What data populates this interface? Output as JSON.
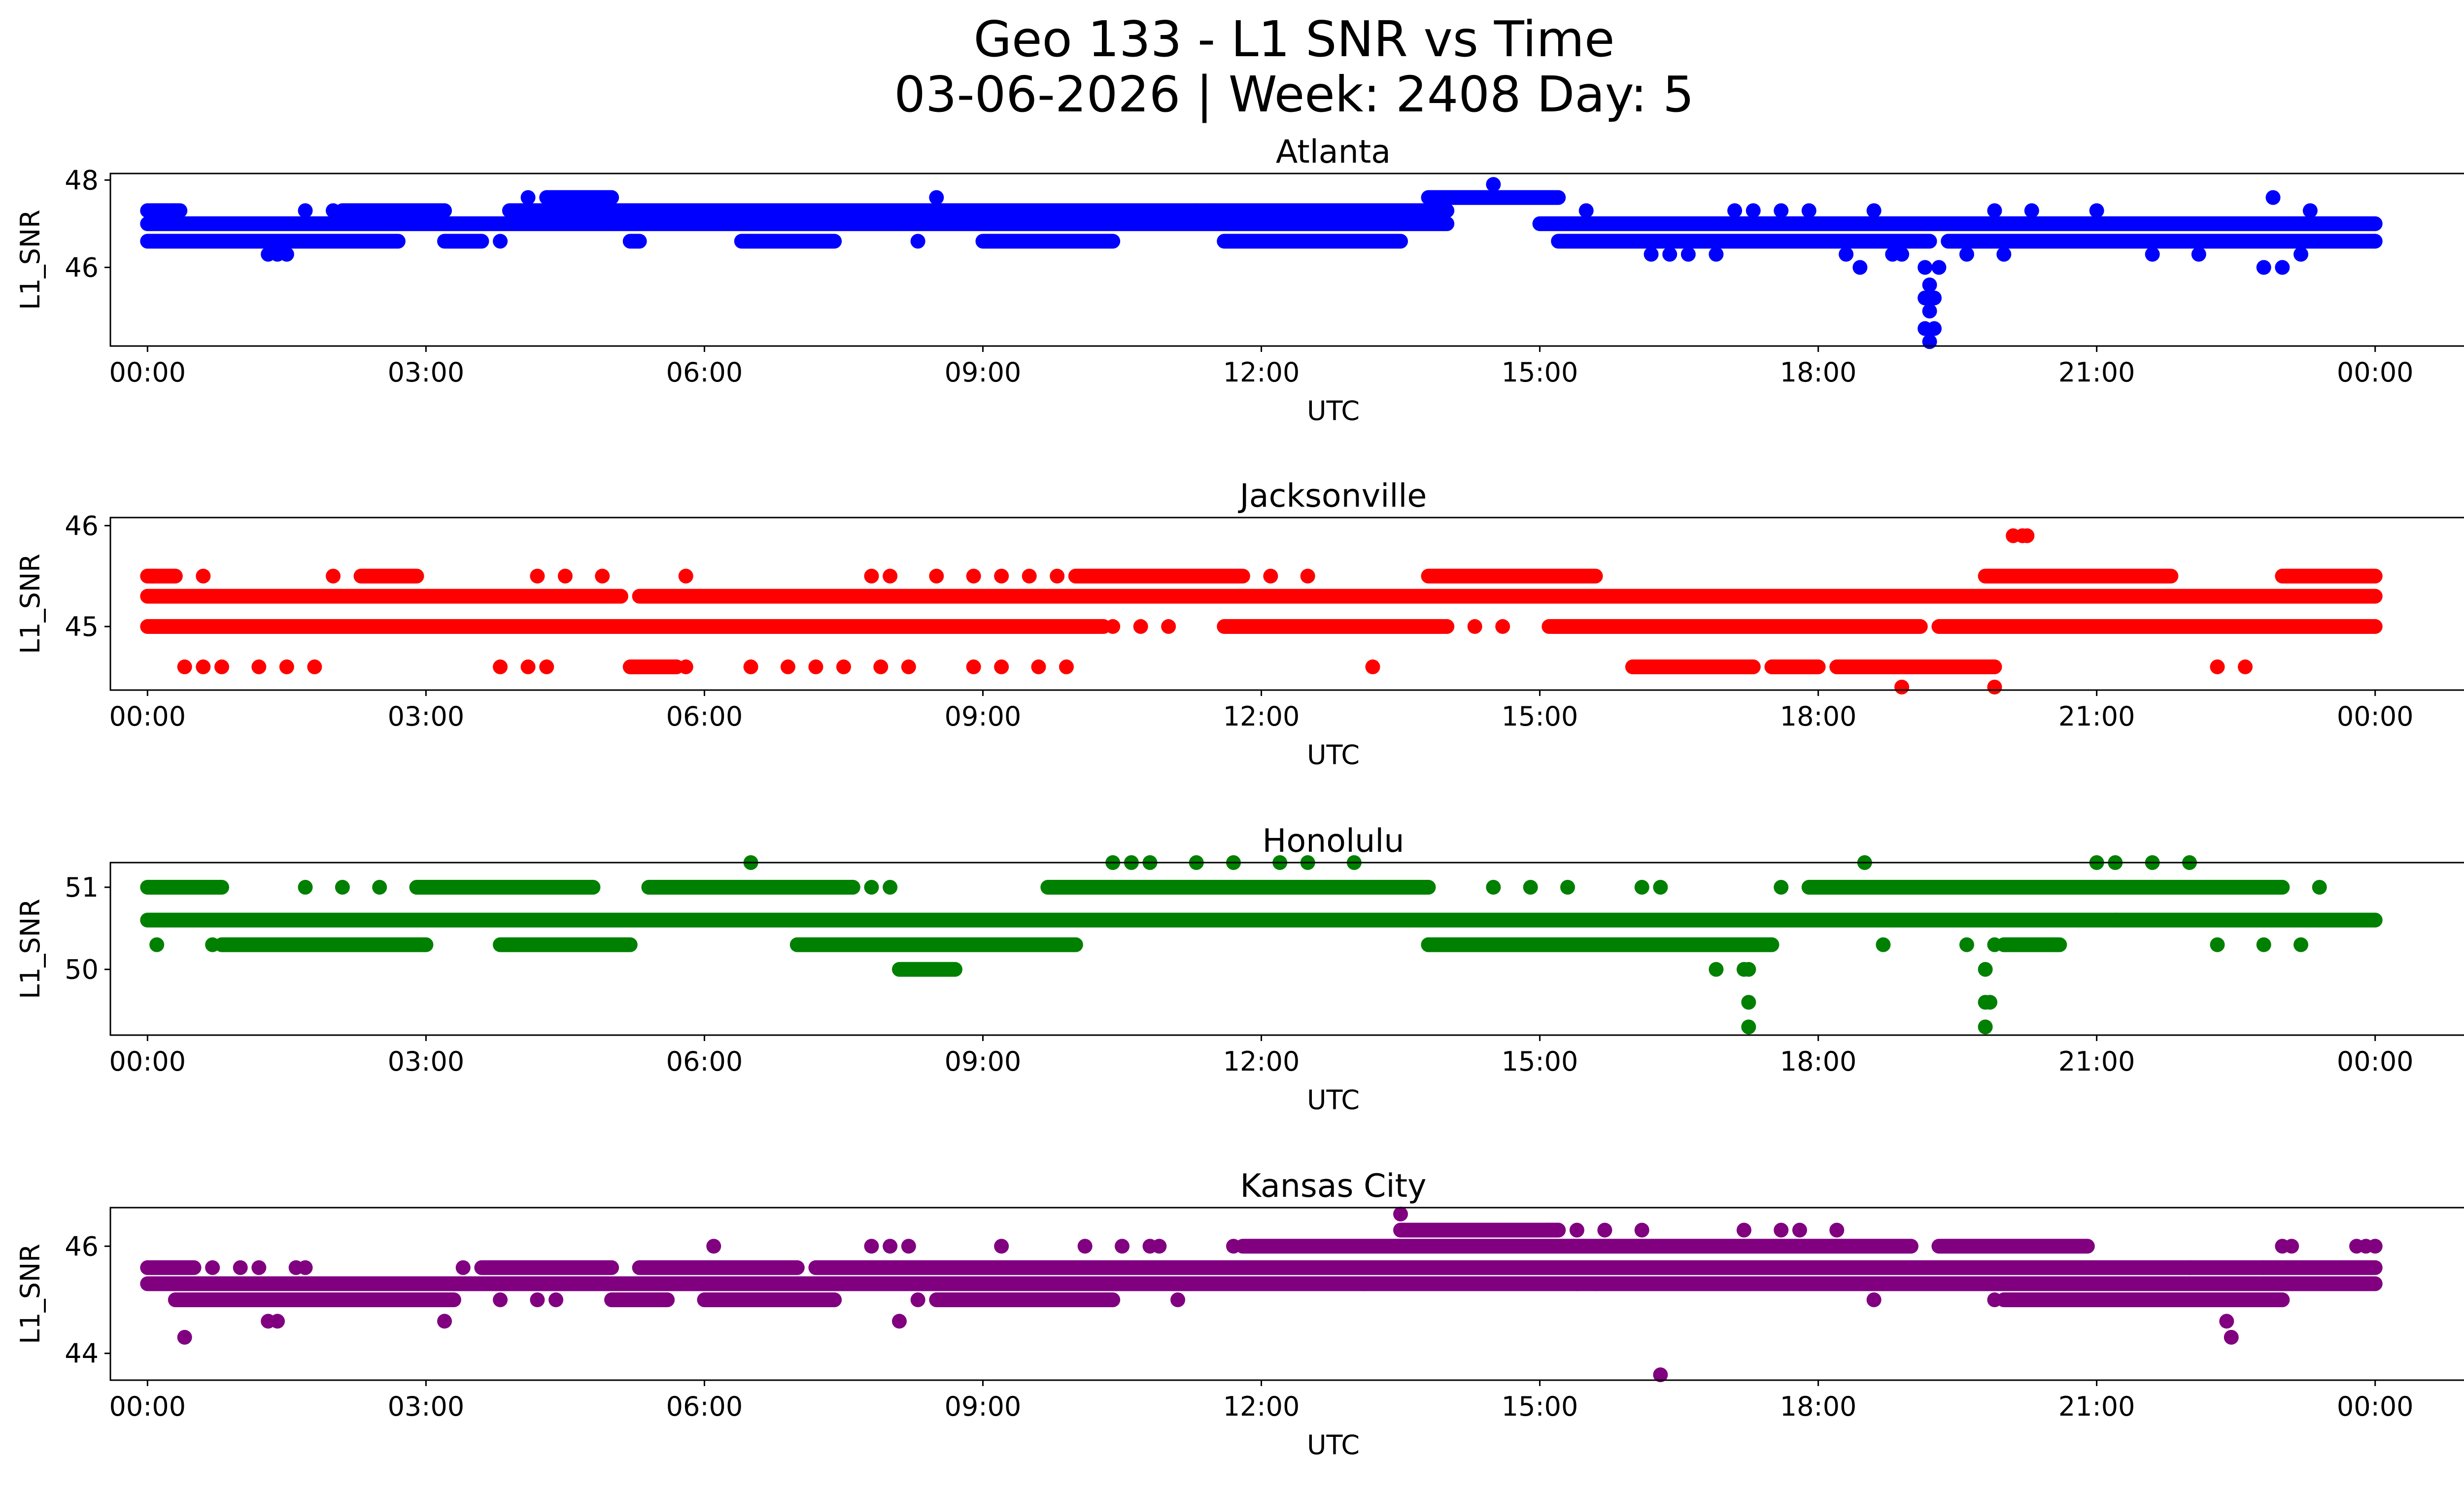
{
  "figure": {
    "title_line1": "Geo 133 - L1 SNR vs Time",
    "title_line2": "03-06-2026 | Week: 2408 Day: 5"
  },
  "chart_data": [
    {
      "type": "scatter",
      "title": "Atlanta",
      "xlabel": "UTC",
      "ylabel": "L1_SNR",
      "color": "#0000ff",
      "xlim_hours": [
        -0.4,
        25.95
      ],
      "ylim": [
        44.2,
        48.15
      ],
      "x_ticks": [
        "00:00",
        "03:00",
        "06:00",
        "09:00",
        "12:00",
        "15:00",
        "18:00",
        "21:00",
        "00:00"
      ],
      "y_ticks": [
        46,
        48
      ],
      "grid": false,
      "bands": [
        {
          "y": 47.0,
          "segments": [
            [
              0.0,
              14.0
            ],
            [
              15.0,
              24.0
            ]
          ]
        },
        {
          "y": 46.6,
          "segments": [
            [
              0.0,
              2.7
            ],
            [
              3.2,
              3.6
            ],
            [
              5.2,
              5.3
            ],
            [
              6.4,
              7.4
            ],
            [
              9.0,
              10.4
            ],
            [
              11.6,
              13.5
            ],
            [
              15.2,
              19.2
            ],
            [
              19.4,
              24.0
            ]
          ]
        },
        {
          "y": 47.3,
          "segments": [
            [
              0.0,
              0.35
            ],
            [
              2.1,
              3.2
            ],
            [
              3.9,
              14.0
            ]
          ]
        },
        {
          "y": 47.6,
          "segments": [
            [
              4.3,
              5.0
            ],
            [
              13.8,
              15.2
            ]
          ]
        }
      ],
      "points": [
        {
          "x": 0.1,
          "y": 47.3
        },
        {
          "x": 0.2,
          "y": 47.3
        },
        {
          "x": 0.3,
          "y": 47.3
        },
        {
          "x": 1.3,
          "y": 46.3
        },
        {
          "x": 1.4,
          "y": 46.3
        },
        {
          "x": 1.5,
          "y": 46.3
        },
        {
          "x": 1.7,
          "y": 47.3
        },
        {
          "x": 2.0,
          "y": 47.3
        },
        {
          "x": 3.8,
          "y": 46.6
        },
        {
          "x": 4.1,
          "y": 47.6
        },
        {
          "x": 8.5,
          "y": 47.6
        },
        {
          "x": 8.3,
          "y": 46.6
        },
        {
          "x": 11.3,
          "y": 47.3
        },
        {
          "x": 11.5,
          "y": 47.3
        },
        {
          "x": 14.5,
          "y": 47.9
        },
        {
          "x": 15.5,
          "y": 47.3
        },
        {
          "x": 16.2,
          "y": 46.3
        },
        {
          "x": 16.4,
          "y": 46.3
        },
        {
          "x": 16.6,
          "y": 46.3
        },
        {
          "x": 16.9,
          "y": 46.3
        },
        {
          "x": 17.1,
          "y": 47.3
        },
        {
          "x": 17.3,
          "y": 47.3
        },
        {
          "x": 17.6,
          "y": 47.3
        },
        {
          "x": 17.9,
          "y": 47.3
        },
        {
          "x": 18.3,
          "y": 46.3
        },
        {
          "x": 18.6,
          "y": 47.3
        },
        {
          "x": 18.8,
          "y": 46.3
        },
        {
          "x": 18.45,
          "y": 46.0
        },
        {
          "x": 18.9,
          "y": 46.3
        },
        {
          "x": 19.15,
          "y": 46.0
        },
        {
          "x": 19.2,
          "y": 45.6
        },
        {
          "x": 19.15,
          "y": 45.3
        },
        {
          "x": 19.25,
          "y": 45.3
        },
        {
          "x": 19.2,
          "y": 45.0
        },
        {
          "x": 19.15,
          "y": 44.6
        },
        {
          "x": 19.25,
          "y": 44.6
        },
        {
          "x": 19.2,
          "y": 44.3
        },
        {
          "x": 19.3,
          "y": 46.0
        },
        {
          "x": 19.6,
          "y": 46.3
        },
        {
          "x": 20.0,
          "y": 46.3
        },
        {
          "x": 19.9,
          "y": 47.3
        },
        {
          "x": 20.3,
          "y": 47.3
        },
        {
          "x": 21.0,
          "y": 47.3
        },
        {
          "x": 21.6,
          "y": 46.3
        },
        {
          "x": 22.1,
          "y": 46.3
        },
        {
          "x": 22.8,
          "y": 46.0
        },
        {
          "x": 23.0,
          "y": 46.0
        },
        {
          "x": 22.9,
          "y": 47.6
        },
        {
          "x": 23.3,
          "y": 47.3
        },
        {
          "x": 23.2,
          "y": 46.3
        }
      ]
    },
    {
      "type": "scatter",
      "title": "Jacksonville",
      "xlabel": "UTC",
      "ylabel": "L1_SNR",
      "color": "#ff0000",
      "xlim_hours": [
        -0.4,
        25.95
      ],
      "ylim": [
        44.37,
        46.08
      ],
      "x_ticks": [
        "00:00",
        "03:00",
        "06:00",
        "09:00",
        "12:00",
        "15:00",
        "18:00",
        "21:00",
        "00:00"
      ],
      "y_ticks": [
        45,
        46
      ],
      "grid": false,
      "bands": [
        {
          "y": 45.3,
          "segments": [
            [
              0.0,
              5.1
            ],
            [
              5.3,
              24.0
            ]
          ]
        },
        {
          "y": 45.0,
          "segments": [
            [
              0.0,
              10.3
            ],
            [
              11.6,
              14.0
            ],
            [
              15.1,
              19.1
            ],
            [
              19.3,
              24.0
            ]
          ]
        },
        {
          "y": 45.5,
          "segments": [
            [
              0.0,
              0.3
            ],
            [
              2.3,
              2.9
            ],
            [
              10.0,
              11.8
            ],
            [
              13.8,
              15.6
            ],
            [
              19.8,
              21.8
            ],
            [
              23.0,
              24.0
            ]
          ]
        },
        {
          "y": 44.6,
          "segments": [
            [
              5.2,
              5.7
            ],
            [
              16.0,
              17.3
            ],
            [
              17.5,
              18.0
            ],
            [
              18.2,
              19.9
            ]
          ]
        }
      ],
      "points": [
        {
          "x": 0.05,
          "y": 45.5
        },
        {
          "x": 0.6,
          "y": 45.5
        },
        {
          "x": 2.0,
          "y": 45.5
        },
        {
          "x": 4.2,
          "y": 45.5
        },
        {
          "x": 4.5,
          "y": 45.5
        },
        {
          "x": 4.9,
          "y": 45.5
        },
        {
          "x": 5.8,
          "y": 45.5
        },
        {
          "x": 7.8,
          "y": 45.5
        },
        {
          "x": 8.0,
          "y": 45.5
        },
        {
          "x": 8.5,
          "y": 45.5
        },
        {
          "x": 8.9,
          "y": 45.5
        },
        {
          "x": 9.2,
          "y": 45.5
        },
        {
          "x": 9.5,
          "y": 45.5
        },
        {
          "x": 9.8,
          "y": 45.5
        },
        {
          "x": 12.1,
          "y": 45.5
        },
        {
          "x": 12.5,
          "y": 45.5
        },
        {
          "x": 0.4,
          "y": 44.6
        },
        {
          "x": 0.6,
          "y": 44.6
        },
        {
          "x": 0.8,
          "y": 44.6
        },
        {
          "x": 1.2,
          "y": 44.6
        },
        {
          "x": 1.5,
          "y": 44.6
        },
        {
          "x": 1.8,
          "y": 44.6
        },
        {
          "x": 3.8,
          "y": 44.6
        },
        {
          "x": 4.1,
          "y": 44.6
        },
        {
          "x": 4.3,
          "y": 44.6
        },
        {
          "x": 5.8,
          "y": 44.6
        },
        {
          "x": 6.5,
          "y": 44.6
        },
        {
          "x": 6.9,
          "y": 44.6
        },
        {
          "x": 7.2,
          "y": 44.6
        },
        {
          "x": 7.5,
          "y": 44.6
        },
        {
          "x": 7.9,
          "y": 44.6
        },
        {
          "x": 8.2,
          "y": 44.6
        },
        {
          "x": 8.9,
          "y": 44.6
        },
        {
          "x": 9.2,
          "y": 44.6
        },
        {
          "x": 9.6,
          "y": 44.6
        },
        {
          "x": 9.9,
          "y": 44.6
        },
        {
          "x": 13.2,
          "y": 44.6
        },
        {
          "x": 22.3,
          "y": 44.6
        },
        {
          "x": 22.6,
          "y": 44.6
        },
        {
          "x": 10.4,
          "y": 45.0
        },
        {
          "x": 10.7,
          "y": 45.0
        },
        {
          "x": 11.0,
          "y": 45.0
        },
        {
          "x": 14.3,
          "y": 45.0
        },
        {
          "x": 14.6,
          "y": 45.0
        },
        {
          "x": 18.9,
          "y": 44.4
        },
        {
          "x": 19.9,
          "y": 44.4
        },
        {
          "x": 20.1,
          "y": 45.9
        },
        {
          "x": 20.2,
          "y": 45.9
        },
        {
          "x": 20.25,
          "y": 45.9
        }
      ]
    },
    {
      "type": "scatter",
      "title": "Honolulu",
      "xlabel": "UTC",
      "ylabel": "L1_SNR",
      "color": "#008000",
      "xlim_hours": [
        -0.4,
        25.95
      ],
      "ylim": [
        49.2,
        51.3
      ],
      "x_ticks": [
        "00:00",
        "03:00",
        "06:00",
        "09:00",
        "12:00",
        "15:00",
        "18:00",
        "21:00",
        "00:00"
      ],
      "y_ticks": [
        50,
        51
      ],
      "grid": false,
      "bands": [
        {
          "y": 50.6,
          "segments": [
            [
              0.0,
              24.0
            ]
          ]
        },
        {
          "y": 51.0,
          "segments": [
            [
              0.0,
              0.8
            ],
            [
              2.9,
              4.8
            ],
            [
              5.4,
              7.6
            ],
            [
              9.7,
              13.8
            ],
            [
              17.9,
              23.0
            ]
          ]
        },
        {
          "y": 50.3,
          "segments": [
            [
              0.8,
              3.0
            ],
            [
              3.8,
              5.2
            ],
            [
              7.0,
              10.0
            ],
            [
              13.8,
              17.5
            ],
            [
              20.0,
              20.6
            ]
          ]
        },
        {
          "y": 50.0,
          "segments": [
            [
              8.1,
              8.7
            ]
          ]
        }
      ],
      "points": [
        {
          "x": 0.1,
          "y": 50.3
        },
        {
          "x": 0.7,
          "y": 50.3
        },
        {
          "x": 1.7,
          "y": 51.0
        },
        {
          "x": 2.1,
          "y": 51.0
        },
        {
          "x": 2.5,
          "y": 51.0
        },
        {
          "x": 6.5,
          "y": 51.3
        },
        {
          "x": 7.8,
          "y": 51.0
        },
        {
          "x": 8.0,
          "y": 51.0
        },
        {
          "x": 10.4,
          "y": 51.3
        },
        {
          "x": 10.6,
          "y": 51.3
        },
        {
          "x": 10.8,
          "y": 51.3
        },
        {
          "x": 11.3,
          "y": 51.3
        },
        {
          "x": 11.7,
          "y": 51.3
        },
        {
          "x": 12.2,
          "y": 51.3
        },
        {
          "x": 12.5,
          "y": 51.3
        },
        {
          "x": 13.0,
          "y": 51.3
        },
        {
          "x": 14.5,
          "y": 51.0
        },
        {
          "x": 14.9,
          "y": 51.0
        },
        {
          "x": 15.3,
          "y": 51.0
        },
        {
          "x": 16.1,
          "y": 51.0
        },
        {
          "x": 16.3,
          "y": 51.0
        },
        {
          "x": 17.6,
          "y": 51.0
        },
        {
          "x": 18.5,
          "y": 51.3
        },
        {
          "x": 18.7,
          "y": 50.3
        },
        {
          "x": 19.6,
          "y": 50.3
        },
        {
          "x": 19.9,
          "y": 50.3
        },
        {
          "x": 21.0,
          "y": 51.3
        },
        {
          "x": 21.2,
          "y": 51.3
        },
        {
          "x": 21.6,
          "y": 51.3
        },
        {
          "x": 22.0,
          "y": 51.3
        },
        {
          "x": 23.4,
          "y": 51.0
        },
        {
          "x": 23.2,
          "y": 50.3
        },
        {
          "x": 22.3,
          "y": 50.3
        },
        {
          "x": 22.8,
          "y": 50.3
        },
        {
          "x": 16.9,
          "y": 50.0
        },
        {
          "x": 17.2,
          "y": 50.0
        },
        {
          "x": 17.25,
          "y": 50.0
        },
        {
          "x": 17.25,
          "y": 49.6
        },
        {
          "x": 17.25,
          "y": 49.3
        },
        {
          "x": 19.8,
          "y": 50.0
        },
        {
          "x": 19.8,
          "y": 49.6
        },
        {
          "x": 19.85,
          "y": 49.6
        },
        {
          "x": 19.8,
          "y": 49.3
        },
        {
          "x": 21.2,
          "y": 50.6
        },
        {
          "x": 13.8,
          "y": 50.3
        }
      ]
    },
    {
      "type": "scatter",
      "title": "Kansas City",
      "xlabel": "UTC",
      "ylabel": "L1_SNR",
      "color": "#800080",
      "xlim_hours": [
        -0.4,
        25.95
      ],
      "ylim": [
        43.5,
        46.72
      ],
      "x_ticks": [
        "00:00",
        "03:00",
        "06:00",
        "09:00",
        "12:00",
        "15:00",
        "18:00",
        "21:00",
        "00:00"
      ],
      "y_ticks": [
        44,
        46
      ],
      "grid": false,
      "bands": [
        {
          "y": 45.3,
          "segments": [
            [
              0.0,
              24.0
            ]
          ]
        },
        {
          "y": 45.6,
          "segments": [
            [
              0.0,
              0.5
            ],
            [
              3.6,
              5.0
            ],
            [
              5.3,
              7.0
            ],
            [
              7.2,
              24.0
            ]
          ]
        },
        {
          "y": 45.0,
          "segments": [
            [
              0.3,
              3.3
            ],
            [
              5.0,
              5.6
            ],
            [
              6.0,
              7.4
            ],
            [
              8.5,
              10.4
            ],
            [
              20.0,
              23.0
            ]
          ]
        },
        {
          "y": 46.0,
          "segments": [
            [
              11.8,
              19.0
            ],
            [
              19.3,
              20.9
            ]
          ]
        },
        {
          "y": 46.3,
          "segments": [
            [
              13.5,
              15.2
            ]
          ]
        }
      ],
      "points": [
        {
          "x": 0.4,
          "y": 44.3
        },
        {
          "x": 0.7,
          "y": 45.6
        },
        {
          "x": 1.0,
          "y": 45.6
        },
        {
          "x": 1.2,
          "y": 45.6
        },
        {
          "x": 1.4,
          "y": 44.6
        },
        {
          "x": 1.3,
          "y": 44.6
        },
        {
          "x": 1.6,
          "y": 45.6
        },
        {
          "x": 1.7,
          "y": 45.6
        },
        {
          "x": 3.2,
          "y": 44.6
        },
        {
          "x": 3.3,
          "y": 45.3
        },
        {
          "x": 3.4,
          "y": 45.6
        },
        {
          "x": 3.8,
          "y": 45.0
        },
        {
          "x": 4.2,
          "y": 45.0
        },
        {
          "x": 4.4,
          "y": 45.0
        },
        {
          "x": 6.1,
          "y": 46.0
        },
        {
          "x": 7.8,
          "y": 46.0
        },
        {
          "x": 8.0,
          "y": 46.0
        },
        {
          "x": 8.2,
          "y": 46.0
        },
        {
          "x": 8.1,
          "y": 44.6
        },
        {
          "x": 8.3,
          "y": 45.0
        },
        {
          "x": 9.2,
          "y": 46.0
        },
        {
          "x": 10.1,
          "y": 46.0
        },
        {
          "x": 10.5,
          "y": 46.0
        },
        {
          "x": 10.8,
          "y": 46.0
        },
        {
          "x": 10.9,
          "y": 46.0
        },
        {
          "x": 11.1,
          "y": 45.0
        },
        {
          "x": 11.7,
          "y": 46.0
        },
        {
          "x": 13.5,
          "y": 46.6
        },
        {
          "x": 13.1,
          "y": 45.3
        },
        {
          "x": 15.1,
          "y": 46.3
        },
        {
          "x": 15.4,
          "y": 46.3
        },
        {
          "x": 15.7,
          "y": 46.3
        },
        {
          "x": 15.4,
          "y": 45.3
        },
        {
          "x": 15.6,
          "y": 45.3
        },
        {
          "x": 16.1,
          "y": 46.3
        },
        {
          "x": 16.3,
          "y": 43.6
        },
        {
          "x": 17.2,
          "y": 46.3
        },
        {
          "x": 17.6,
          "y": 46.3
        },
        {
          "x": 17.8,
          "y": 46.3
        },
        {
          "x": 18.2,
          "y": 46.3
        },
        {
          "x": 18.6,
          "y": 45.0
        },
        {
          "x": 19.9,
          "y": 45.0
        },
        {
          "x": 22.0,
          "y": 45.6
        },
        {
          "x": 22.4,
          "y": 44.6
        },
        {
          "x": 22.45,
          "y": 44.3
        },
        {
          "x": 22.8,
          "y": 45.6
        },
        {
          "x": 23.0,
          "y": 46.0
        },
        {
          "x": 23.1,
          "y": 46.0
        },
        {
          "x": 23.8,
          "y": 46.0
        },
        {
          "x": 23.9,
          "y": 46.0
        },
        {
          "x": 24.0,
          "y": 46.0
        }
      ]
    }
  ]
}
